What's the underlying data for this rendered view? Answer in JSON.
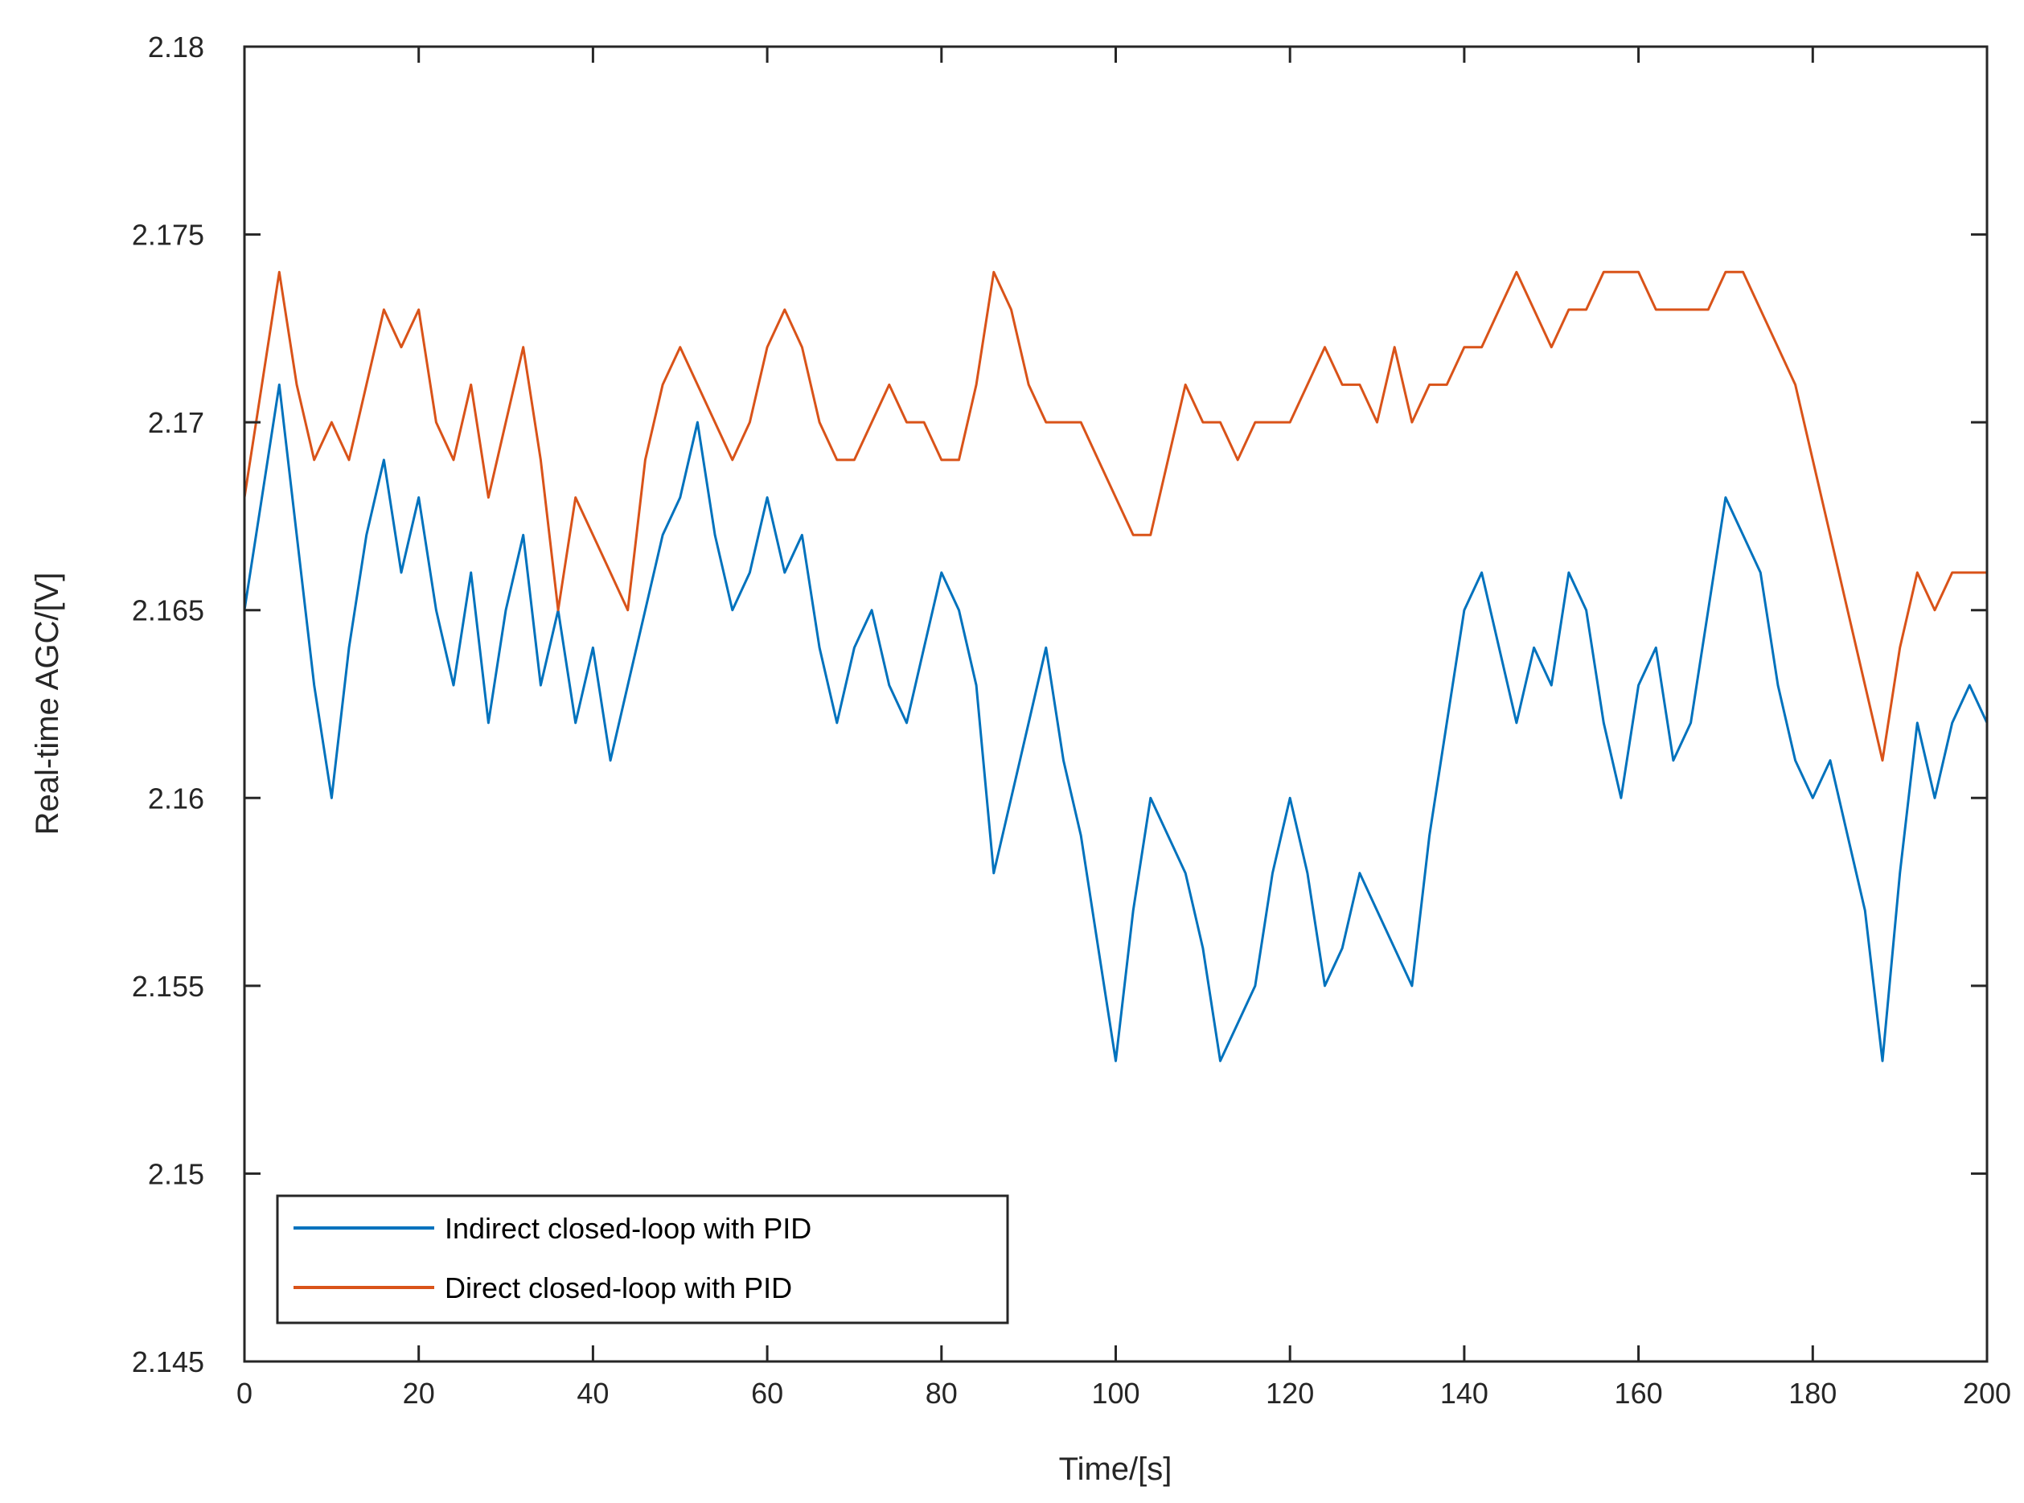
{
  "chart_data": {
    "type": "line",
    "title": "",
    "xlabel": "Time/[s]",
    "ylabel": "Real-time AGC/[V]",
    "xlim": [
      0,
      200
    ],
    "ylim": [
      2.145,
      2.18
    ],
    "grid": false,
    "xticks": [
      0,
      20,
      40,
      60,
      80,
      100,
      120,
      140,
      160,
      180,
      200
    ],
    "xtick_labels": [
      "0",
      "20",
      "40",
      "60",
      "80",
      "100",
      "120",
      "140",
      "160",
      "180",
      "200"
    ],
    "yticks": [
      2.145,
      2.15,
      2.155,
      2.16,
      2.165,
      2.17,
      2.175,
      2.18
    ],
    "ytick_labels": [
      "2.145",
      "2.15",
      "2.155",
      "2.16",
      "2.165",
      "2.17",
      "2.175",
      "2.18"
    ],
    "legend_position": "bottom-left",
    "series": [
      {
        "name": "Indirect closed-loop with PID",
        "color": "#0072BD",
        "x": [
          0,
          2,
          4,
          6,
          8,
          10,
          12,
          14,
          16,
          18,
          20,
          22,
          24,
          26,
          28,
          30,
          32,
          34,
          36,
          38,
          40,
          42,
          44,
          46,
          48,
          50,
          52,
          54,
          56,
          58,
          60,
          62,
          64,
          66,
          68,
          70,
          72,
          74,
          76,
          78,
          80,
          82,
          84,
          86,
          88,
          90,
          92,
          94,
          96,
          98,
          100,
          102,
          104,
          106,
          108,
          110,
          112,
          114,
          116,
          118,
          120,
          122,
          124,
          126,
          128,
          130,
          132,
          134,
          136,
          138,
          140,
          142,
          144,
          146,
          148,
          150,
          152,
          154,
          156,
          158,
          160,
          162,
          164,
          166,
          168,
          170,
          172,
          174,
          176,
          178,
          180,
          182,
          184,
          186,
          188,
          190,
          192,
          194,
          196,
          198,
          200
        ],
        "values": [
          2.165,
          2.168,
          2.171,
          2.167,
          2.163,
          2.16,
          2.164,
          2.167,
          2.169,
          2.166,
          2.168,
          2.165,
          2.163,
          2.166,
          2.162,
          2.165,
          2.167,
          2.163,
          2.165,
          2.162,
          2.164,
          2.161,
          2.163,
          2.165,
          2.167,
          2.168,
          2.17,
          2.167,
          2.165,
          2.166,
          2.168,
          2.166,
          2.167,
          2.164,
          2.162,
          2.164,
          2.165,
          2.163,
          2.162,
          2.164,
          2.166,
          2.165,
          2.163,
          2.158,
          2.16,
          2.162,
          2.164,
          2.161,
          2.159,
          2.156,
          2.153,
          2.157,
          2.16,
          2.159,
          2.158,
          2.156,
          2.153,
          2.154,
          2.155,
          2.158,
          2.16,
          2.158,
          2.155,
          2.156,
          2.158,
          2.157,
          2.156,
          2.155,
          2.159,
          2.162,
          2.165,
          2.166,
          2.164,
          2.162,
          2.164,
          2.163,
          2.166,
          2.165,
          2.162,
          2.16,
          2.163,
          2.164,
          2.161,
          2.162,
          2.165,
          2.168,
          2.167,
          2.166,
          2.163,
          2.161,
          2.16,
          2.161,
          2.159,
          2.157,
          2.153,
          2.158,
          2.162,
          2.16,
          2.162,
          2.163,
          2.162
        ]
      },
      {
        "name": "Direct closed-loop with PID",
        "color": "#D95319",
        "x": [
          0,
          2,
          4,
          6,
          8,
          10,
          12,
          14,
          16,
          18,
          20,
          22,
          24,
          26,
          28,
          30,
          32,
          34,
          36,
          38,
          40,
          42,
          44,
          46,
          48,
          50,
          52,
          54,
          56,
          58,
          60,
          62,
          64,
          66,
          68,
          70,
          72,
          74,
          76,
          78,
          80,
          82,
          84,
          86,
          88,
          90,
          92,
          94,
          96,
          98,
          100,
          102,
          104,
          106,
          108,
          110,
          112,
          114,
          116,
          118,
          120,
          122,
          124,
          126,
          128,
          130,
          132,
          134,
          136,
          138,
          140,
          142,
          144,
          146,
          148,
          150,
          152,
          154,
          156,
          158,
          160,
          162,
          164,
          166,
          168,
          170,
          172,
          174,
          176,
          178,
          180,
          182,
          184,
          186,
          188,
          190,
          192,
          194,
          196,
          198,
          200
        ],
        "values": [
          2.168,
          2.171,
          2.174,
          2.171,
          2.169,
          2.17,
          2.169,
          2.171,
          2.173,
          2.172,
          2.173,
          2.17,
          2.169,
          2.171,
          2.168,
          2.17,
          2.172,
          2.169,
          2.165,
          2.168,
          2.167,
          2.166,
          2.165,
          2.169,
          2.171,
          2.172,
          2.171,
          2.17,
          2.169,
          2.17,
          2.172,
          2.173,
          2.172,
          2.17,
          2.169,
          2.169,
          2.17,
          2.171,
          2.17,
          2.17,
          2.169,
          2.169,
          2.171,
          2.174,
          2.173,
          2.171,
          2.17,
          2.17,
          2.17,
          2.169,
          2.168,
          2.167,
          2.167,
          2.169,
          2.171,
          2.17,
          2.17,
          2.169,
          2.17,
          2.17,
          2.17,
          2.171,
          2.172,
          2.171,
          2.171,
          2.17,
          2.172,
          2.17,
          2.171,
          2.171,
          2.172,
          2.172,
          2.173,
          2.174,
          2.173,
          2.172,
          2.173,
          2.173,
          2.174,
          2.174,
          2.174,
          2.173,
          2.173,
          2.173,
          2.173,
          2.174,
          2.174,
          2.173,
          2.172,
          2.171,
          2.169,
          2.167,
          2.165,
          2.163,
          2.161,
          2.164,
          2.166,
          2.165,
          2.166,
          2.166,
          2.166
        ]
      }
    ]
  }
}
